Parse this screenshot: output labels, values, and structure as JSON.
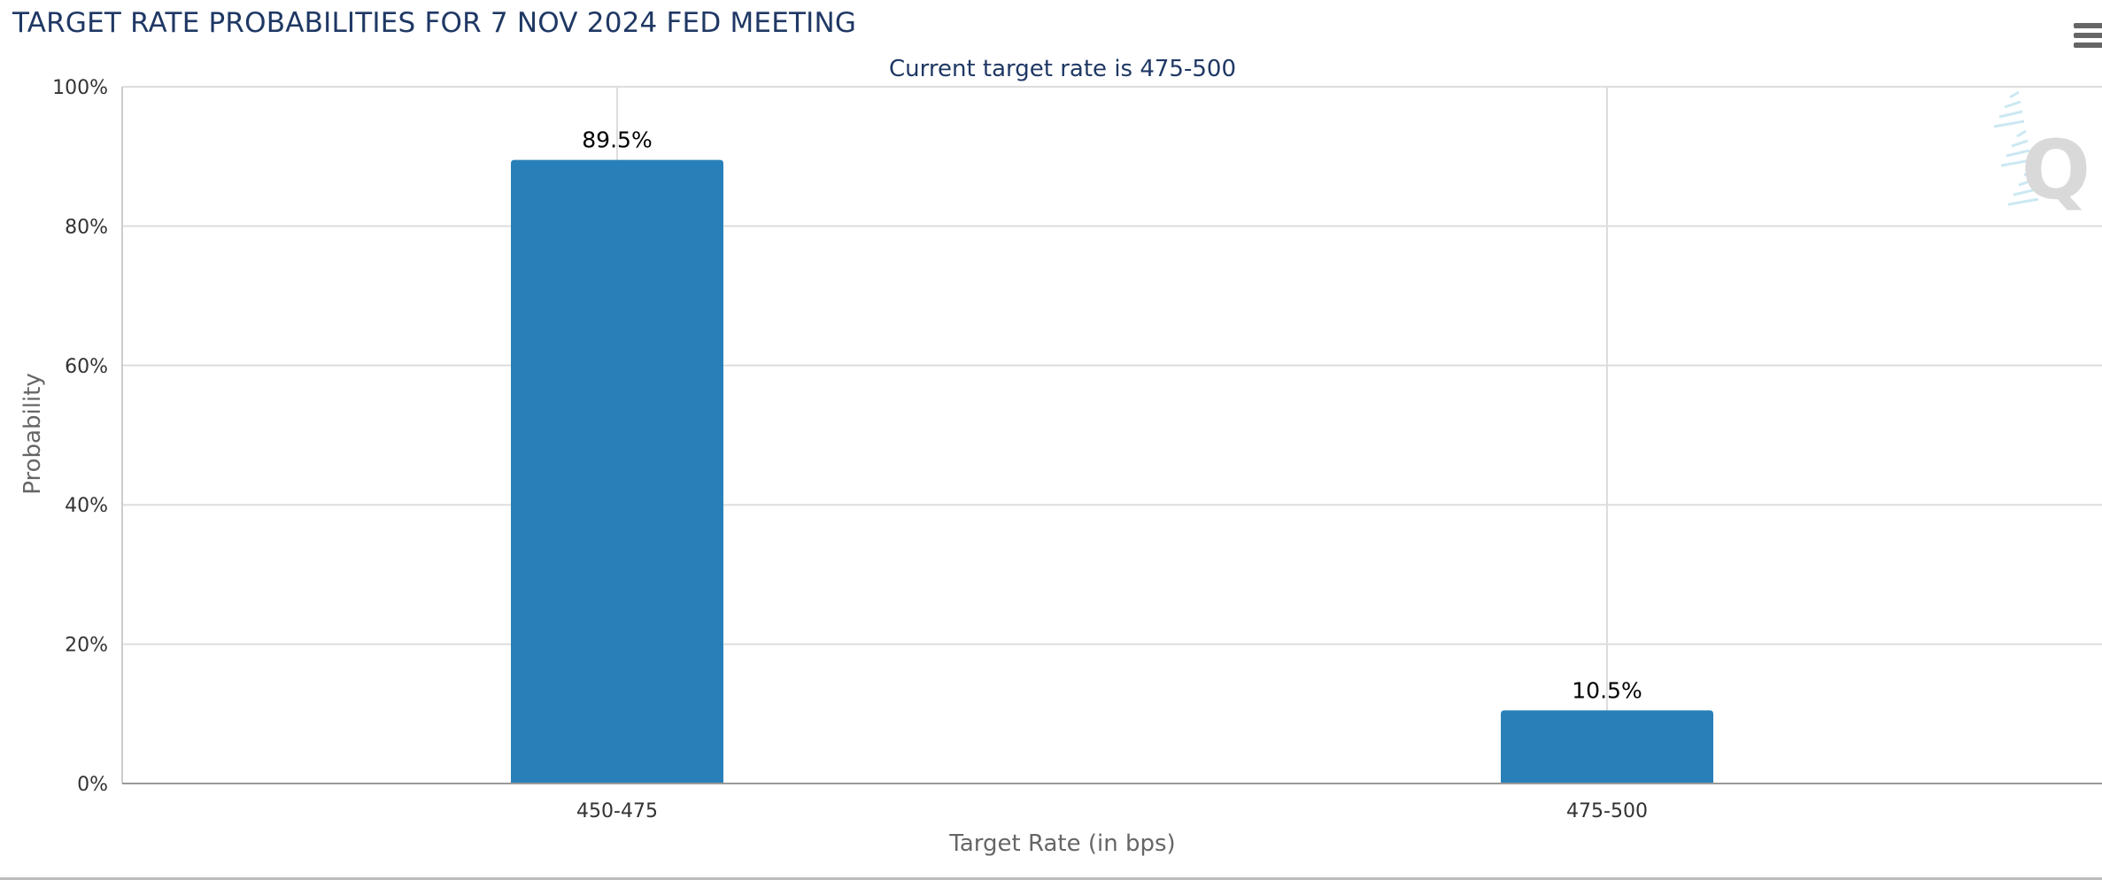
{
  "page": {
    "title": "TARGET RATE PROBABILITIES FOR 7 NOV 2024 FED MEETING"
  },
  "chart_data": {
    "type": "bar",
    "title": "TARGET RATE PROBABILITIES FOR 7 NOV 2024 FED MEETING",
    "subtitle": "Current target rate is 475-500",
    "xlabel": "Target Rate (in bps)",
    "ylabel": "Probability",
    "categories": [
      "450-475",
      "475-500"
    ],
    "values": [
      89.5,
      10.5
    ],
    "data_labels": [
      "89.5%",
      "10.5%"
    ],
    "ylim": [
      0,
      100
    ],
    "yticks": [
      0,
      20,
      40,
      60,
      80,
      100
    ],
    "ytick_labels": [
      "0%",
      "20%",
      "40%",
      "60%",
      "80%",
      "100%"
    ],
    "grid": true,
    "legend": "none",
    "colors": {
      "bar": "#2980b9",
      "title": "#1f3864",
      "grid": "#dddddd",
      "axis_text": "#333333"
    }
  },
  "icons": {
    "menu": "hamburger-menu-icon",
    "watermark": "q-logo-watermark"
  }
}
